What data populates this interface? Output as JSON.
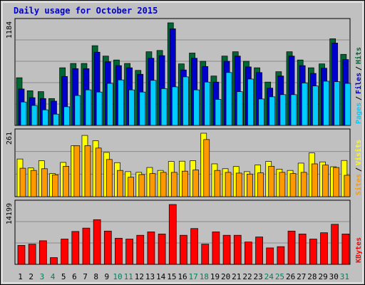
{
  "chart_data": [
    {
      "type": "bar",
      "title": "Daily usage for October 2015",
      "ymax_label": "1184",
      "ylim": [
        0,
        1184
      ],
      "categories": [
        "1",
        "2",
        "3",
        "4",
        "5",
        "6",
        "7",
        "8",
        "9",
        "10",
        "11",
        "12",
        "13",
        "14",
        "15",
        "16",
        "17",
        "18",
        "19",
        "20",
        "21",
        "22",
        "23",
        "24",
        "25",
        "26",
        "27",
        "28",
        "29",
        "30",
        "31"
      ],
      "series": [
        {
          "name": "Hits",
          "color": "#006633",
          "values": [
            550,
            400,
            390,
            310,
            665,
            715,
            715,
            920,
            800,
            755,
            715,
            635,
            850,
            865,
            1184,
            710,
            835,
            740,
            570,
            800,
            850,
            740,
            665,
            500,
            620,
            850,
            755,
            665,
            710,
            1000,
            820
          ]
        },
        {
          "name": "Files",
          "color": "#0000cc",
          "values": [
            420,
            320,
            310,
            280,
            565,
            655,
            655,
            845,
            735,
            690,
            665,
            590,
            775,
            805,
            1115,
            640,
            775,
            680,
            500,
            740,
            800,
            675,
            610,
            430,
            570,
            800,
            690,
            600,
            660,
            950,
            760
          ]
        },
        {
          "name": "Pages",
          "color": "#00ccff",
          "values": [
            270,
            230,
            180,
            130,
            215,
            345,
            410,
            385,
            485,
            525,
            410,
            385,
            520,
            425,
            445,
            560,
            410,
            500,
            300,
            610,
            390,
            535,
            305,
            330,
            355,
            355,
            490,
            455,
            510,
            505,
            485
          ]
        }
      ],
      "legend_labels": [
        "Pages",
        "Files",
        "Hits"
      ]
    },
    {
      "type": "bar",
      "ymax_label": "261",
      "ylim": [
        0,
        261
      ],
      "categories": [
        "1",
        "2",
        "3",
        "4",
        "5",
        "6",
        "7",
        "8",
        "9",
        "10",
        "11",
        "12",
        "13",
        "14",
        "15",
        "16",
        "17",
        "18",
        "19",
        "20",
        "21",
        "22",
        "23",
        "24",
        "25",
        "26",
        "27",
        "28",
        "29",
        "30",
        "31"
      ],
      "series": [
        {
          "name": "Visits",
          "color": "#ffff00",
          "values": [
            155,
            118,
            148,
            95,
            141,
            210,
            252,
            230,
            182,
            140,
            103,
            100,
            120,
            108,
            145,
            146,
            148,
            261,
            135,
            115,
            124,
            103,
            130,
            145,
            113,
            108,
            138,
            180,
            143,
            123,
            149
          ]
        },
        {
          "name": "Sites",
          "color": "#ff9900",
          "values": [
            117,
            108,
            115,
            90,
            125,
            210,
            210,
            200,
            153,
            108,
            80,
            91,
            95,
            100,
            100,
            105,
            110,
            235,
            108,
            100,
            97,
            93,
            98,
            125,
            100,
            95,
            100,
            135,
            130,
            120,
            88
          ]
        }
      ],
      "legend_labels": [
        "Sites",
        "Visits"
      ]
    },
    {
      "type": "bar",
      "ymax_label": "14199",
      "ylim": [
        0,
        14199
      ],
      "categories": [
        "1",
        "2",
        "3",
        "4",
        "5",
        "6",
        "7",
        "8",
        "9",
        "10",
        "11",
        "12",
        "13",
        "14",
        "15",
        "16",
        "17",
        "18",
        "19",
        "20",
        "21",
        "22",
        "23",
        "24",
        "25",
        "26",
        "27",
        "28",
        "29",
        "30",
        "31"
      ],
      "series": [
        {
          "name": "KBytes",
          "color": "#ff0000",
          "values": [
            4500,
            4800,
            5600,
            1600,
            6000,
            7800,
            8600,
            10600,
            7900,
            6200,
            6000,
            6900,
            7700,
            7200,
            14199,
            6900,
            8500,
            4800,
            7700,
            6900,
            6900,
            5300,
            6500,
            3900,
            4200,
            7900,
            7200,
            6000,
            7500,
            9500,
            7200
          ]
        }
      ],
      "legend_labels": [
        "KBytes"
      ]
    }
  ],
  "x_labels": [
    "1",
    "2",
    "3",
    "4",
    "5",
    "6",
    "7",
    "8",
    "9",
    "10",
    "11",
    "12",
    "13",
    "14",
    "15",
    "16",
    "17",
    "18",
    "19",
    "20",
    "21",
    "22",
    "23",
    "24",
    "25",
    "26",
    "27",
    "28",
    "29",
    "30",
    "31"
  ],
  "weekend_days": [
    "3",
    "4",
    "10",
    "11",
    "17",
    "18",
    "24",
    "25",
    "31"
  ],
  "colors": {
    "title": "#0000cc",
    "weekend_label": "#00805c",
    "weekday_label": "#000000",
    "plot_bg": "#c0c0c0",
    "frame": "#000000",
    "gridline": "#8a8a8a",
    "legend_separator": "#000000"
  }
}
